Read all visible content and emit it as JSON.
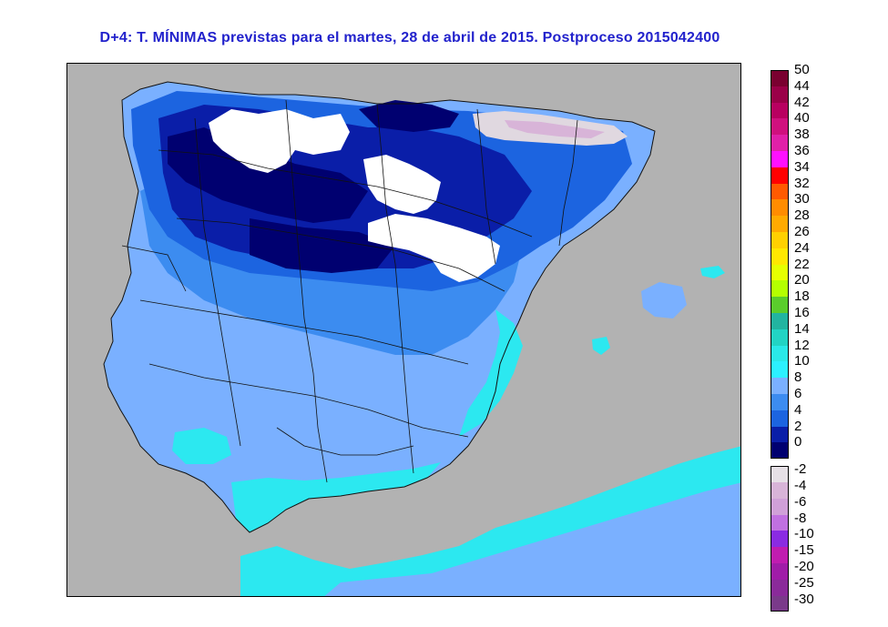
{
  "header": {
    "title": "D+4: T. MÍNIMAS previstas para el martes, 28 de abril de 2015. Postproceso 2015042400"
  },
  "legend": {
    "warm": [
      {
        "label": "50",
        "color": "#7a0030"
      },
      {
        "label": "44",
        "color": "#9a0048"
      },
      {
        "label": "42",
        "color": "#b80060"
      },
      {
        "label": "40",
        "color": "#d0107e"
      },
      {
        "label": "38",
        "color": "#e020a8"
      },
      {
        "label": "36",
        "color": "#ff10ff"
      },
      {
        "label": "34",
        "color": "#ff0000"
      },
      {
        "label": "32",
        "color": "#ff5a00"
      },
      {
        "label": "30",
        "color": "#ff8c00"
      },
      {
        "label": "28",
        "color": "#ffaa00"
      },
      {
        "label": "26",
        "color": "#ffd000"
      },
      {
        "label": "24",
        "color": "#ffe800"
      },
      {
        "label": "22",
        "color": "#e6ff00"
      },
      {
        "label": "20",
        "color": "#b4ff00"
      },
      {
        "label": "18",
        "color": "#5acd2c"
      },
      {
        "label": "16",
        "color": "#22b4a0"
      },
      {
        "label": "14",
        "color": "#22d4c4"
      },
      {
        "label": "12",
        "color": "#2ae8e8"
      },
      {
        "label": "10",
        "color": "#2cf0ff"
      },
      {
        "label": "8",
        "color": "#7ab0ff"
      },
      {
        "label": "6",
        "color": "#3c8cf0"
      },
      {
        "label": "4",
        "color": "#1c64e0"
      },
      {
        "label": "2",
        "color": "#0a1ea8"
      },
      {
        "label": "0",
        "color": "#000070"
      }
    ],
    "cold": [
      {
        "label": "-2",
        "color": "#e6e0e6"
      },
      {
        "label": "-4",
        "color": "#d8b4d8"
      },
      {
        "label": "-6",
        "color": "#d0a0d8"
      },
      {
        "label": "-8",
        "color": "#c070e0"
      },
      {
        "label": "-10",
        "color": "#8a2be2"
      },
      {
        "label": "-15",
        "color": "#c01cb0"
      },
      {
        "label": "-20",
        "color": "#a01ca8"
      },
      {
        "label": "-25",
        "color": "#8a2a9a"
      },
      {
        "label": "-30",
        "color": "#7a3a8a"
      }
    ]
  },
  "map": {
    "sea_color": "#b2b2b2",
    "colors": {
      "cyan": "#2ce8f0",
      "light_blue": "#7ab0ff",
      "mid_blue": "#3c8cf0",
      "blue": "#1c64e0",
      "dark_blue": "#0a1ea8",
      "navy": "#000070",
      "white": "#ffffff",
      "frost": "#e0d8e0",
      "lilac": "#d8b4d8"
    }
  }
}
